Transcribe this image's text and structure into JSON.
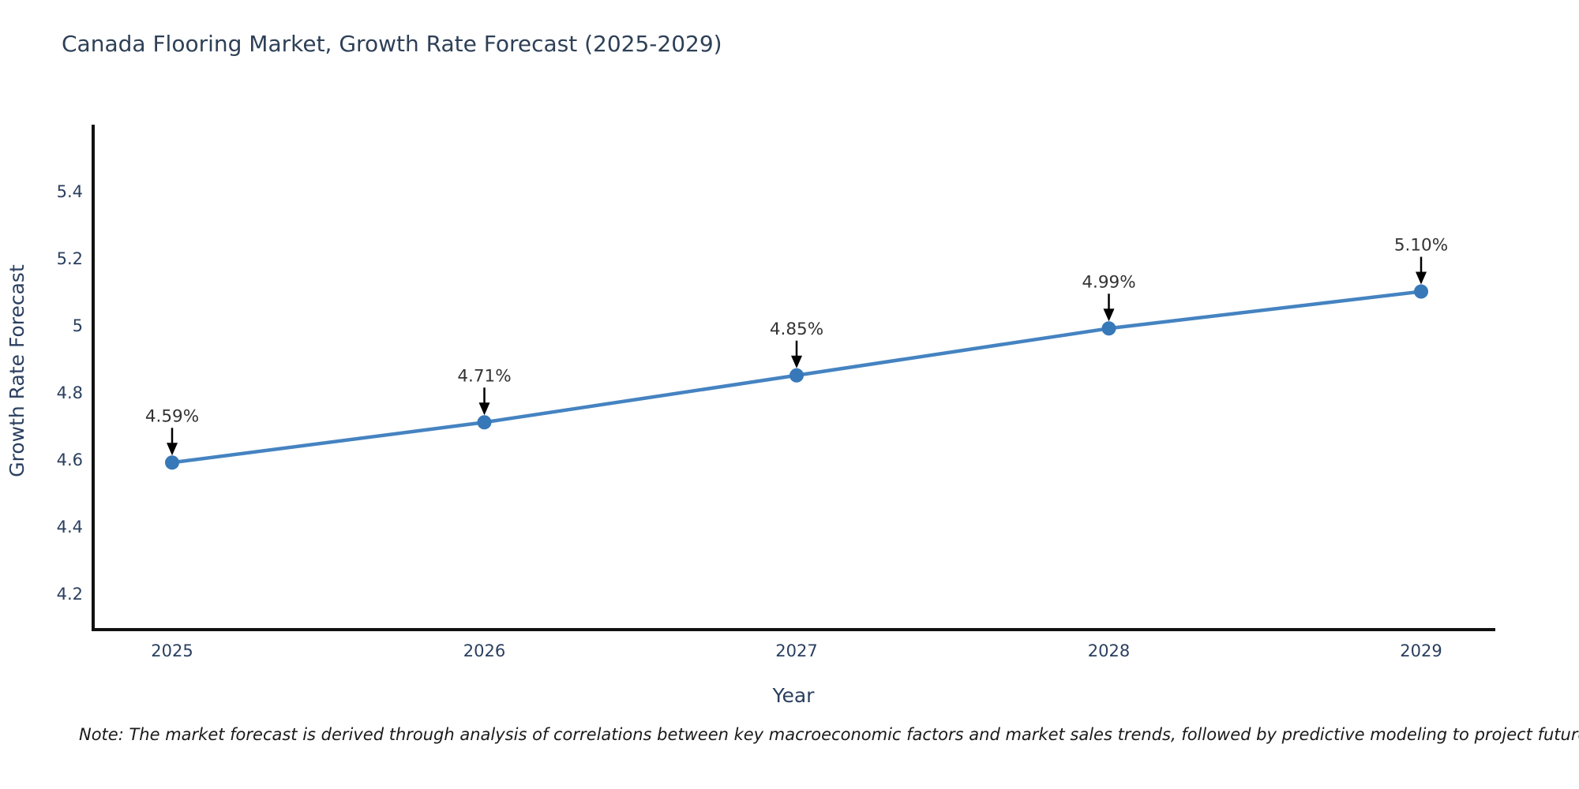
{
  "title": "Canada Flooring Market, Growth Rate Forecast (2025-2029)",
  "note": "Note: The market forecast is derived through analysis of correlations between key macroeconomic factors and market sales trends, followed by predictive modeling to project future sales",
  "chart_data": {
    "type": "line",
    "title": "Canada Flooring Market, Growth Rate Forecast (2025-2029)",
    "xlabel": "Year",
    "ylabel": "Growth Rate Forecast",
    "categories": [
      "2025",
      "2026",
      "2027",
      "2028",
      "2029"
    ],
    "values": [
      4.59,
      4.71,
      4.85,
      4.99,
      5.1
    ],
    "point_labels": [
      "4.59%",
      "4.71%",
      "4.85%",
      "4.99%",
      "5.10%"
    ],
    "y_tick_labels": [
      "5.4",
      "5.2",
      "5",
      "4.8",
      "4.6",
      "4.4",
      "4.2"
    ],
    "y_tick_values": [
      5.4,
      5.2,
      5.0,
      4.8,
      4.6,
      4.4,
      4.2
    ],
    "ylim": [
      4.09,
      5.59
    ],
    "grid": false,
    "legend": "none",
    "annotation_style": "down-arrow",
    "colors": {
      "background": "#ffffff",
      "line": "#4583c1",
      "marker": "#3778b8",
      "axis": "#111111",
      "tick_text": "#2a3f5f",
      "axis_title_text": "#2a3f5f",
      "annotation_text": "#333333",
      "annotation_arrow": "#000000",
      "title_text": "#2e4057",
      "note_text": "#1a1a1a"
    }
  }
}
